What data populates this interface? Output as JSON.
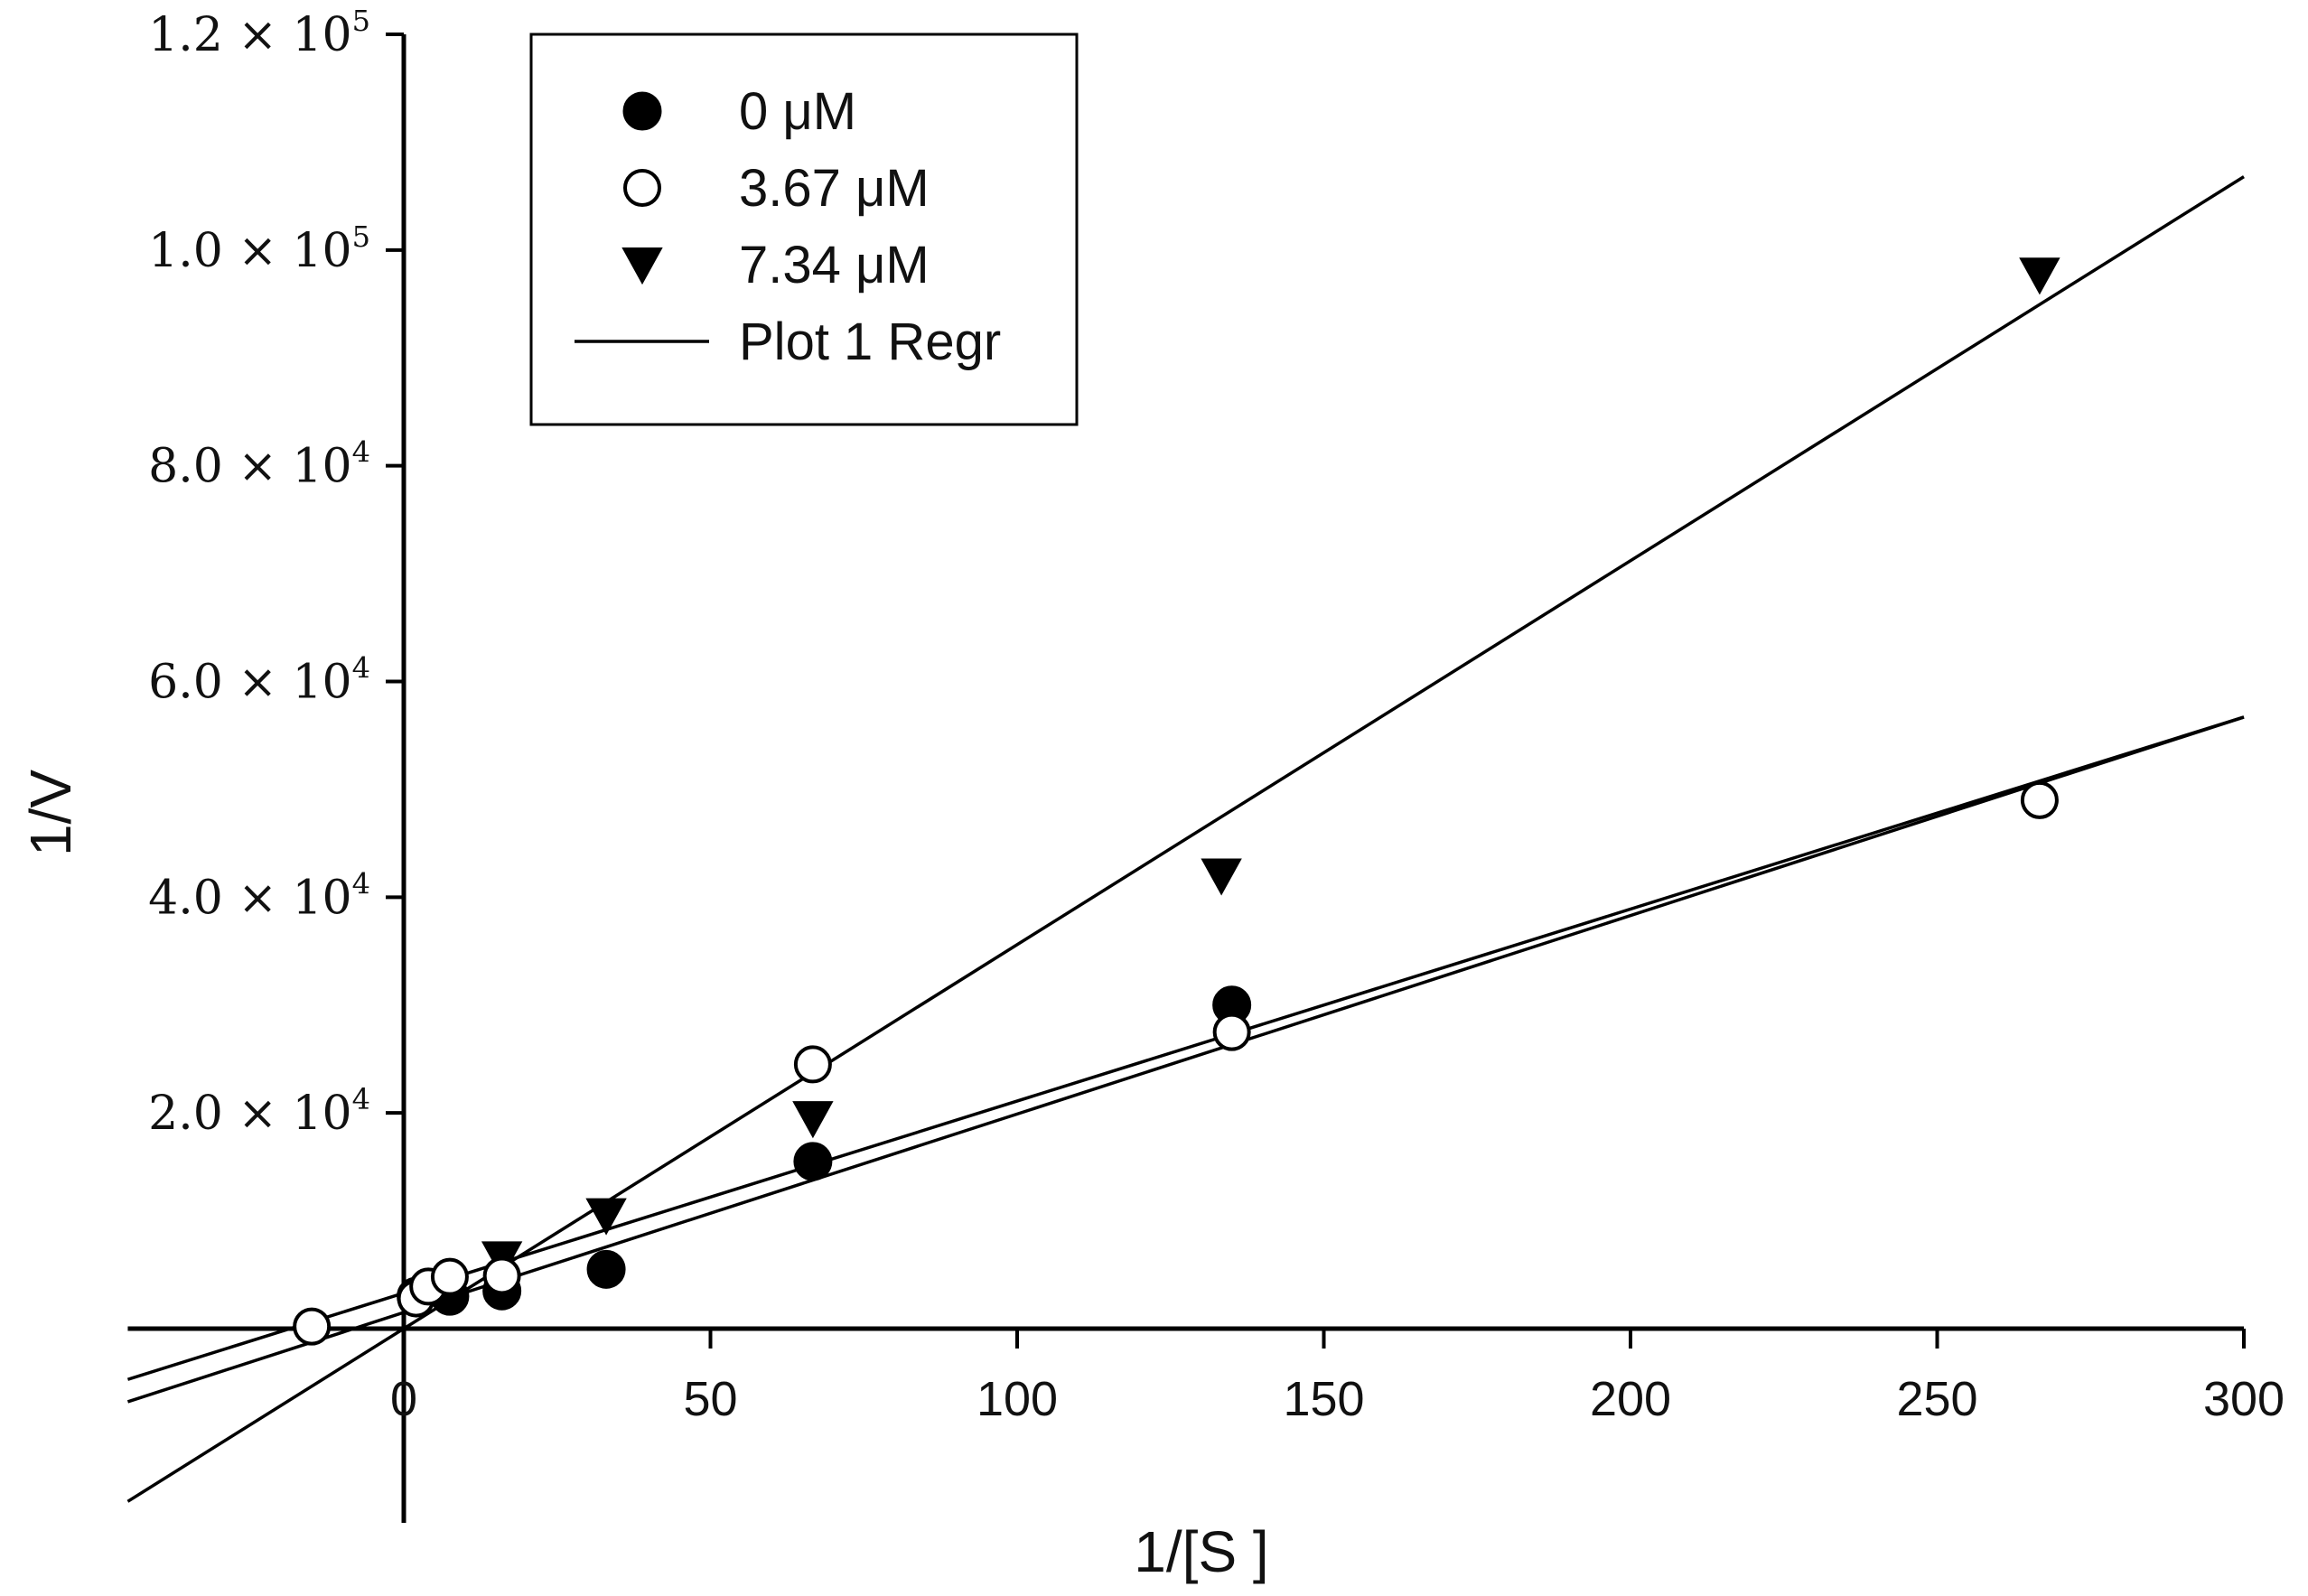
{
  "chart_data": {
    "type": "scatter",
    "title": "",
    "xlabel": "1/[S ]",
    "ylabel": "1/V",
    "xlim": [
      -45,
      300
    ],
    "ylim": [
      -18000,
      120000
    ],
    "x_ticks": [
      0,
      50,
      100,
      150,
      200,
      250,
      300
    ],
    "x_tick_labels": [
      "0",
      "50",
      "100",
      "150",
      "200",
      "250",
      "300"
    ],
    "y_ticks": [
      {
        "value": 20000,
        "mantissa": "2.0",
        "times": "×",
        "base": "10",
        "exp": "4"
      },
      {
        "value": 40000,
        "mantissa": "4.0",
        "times": "×",
        "base": "10",
        "exp": "4"
      },
      {
        "value": 60000,
        "mantissa": "6.0",
        "times": "×",
        "base": "10",
        "exp": "4"
      },
      {
        "value": 80000,
        "mantissa": "8.0",
        "times": "×",
        "base": "10",
        "exp": "4"
      },
      {
        "value": 100000,
        "mantissa": "1.0",
        "times": "×",
        "base": "10",
        "exp": "5"
      },
      {
        "value": 120000,
        "mantissa": "1.2",
        "times": "×",
        "base": "10",
        "exp": "5"
      }
    ],
    "series": [
      {
        "name": "0 μM",
        "marker": "filled-circle",
        "x": [
          2,
          4,
          7.5,
          16,
          33,
          66.7,
          135
        ],
        "y": [
          3000,
          3800,
          3000,
          3500,
          5500,
          15500,
          30000
        ]
      },
      {
        "name": "3.67 μM",
        "marker": "open-circle",
        "x": [
          -15,
          2,
          4,
          7.5,
          16,
          66.7,
          135,
          266.7
        ],
        "y": [
          200,
          2800,
          3900,
          4800,
          4900,
          24500,
          27500,
          49000
        ]
      },
      {
        "name": "7.34 μM",
        "marker": "filled-triangle-down",
        "x": [
          16,
          33,
          66.7,
          133.3,
          266.7
        ],
        "y": [
          6500,
          10500,
          19500,
          42000,
          97700
        ]
      }
    ],
    "regression_lines": [
      {
        "name": "Plot 1 Regr",
        "slope": 178,
        "intercept": 3300
      },
      {
        "name": "Plot 1 Regr",
        "slope": 184,
        "intercept": 1500
      },
      {
        "name": "Plot 1 Regr",
        "slope": 356,
        "intercept": 0
      }
    ],
    "legend": {
      "position": "top-left",
      "entries": [
        {
          "label": "0 μM",
          "marker": "filled-circle"
        },
        {
          "label": "3.67 μM",
          "marker": "open-circle"
        },
        {
          "label": "7.34 μM",
          "marker": "filled-triangle-down"
        },
        {
          "label": "Plot 1 Regr",
          "marker": "line"
        }
      ]
    },
    "colors": {
      "ink": "#000000",
      "background": "#ffffff"
    }
  }
}
